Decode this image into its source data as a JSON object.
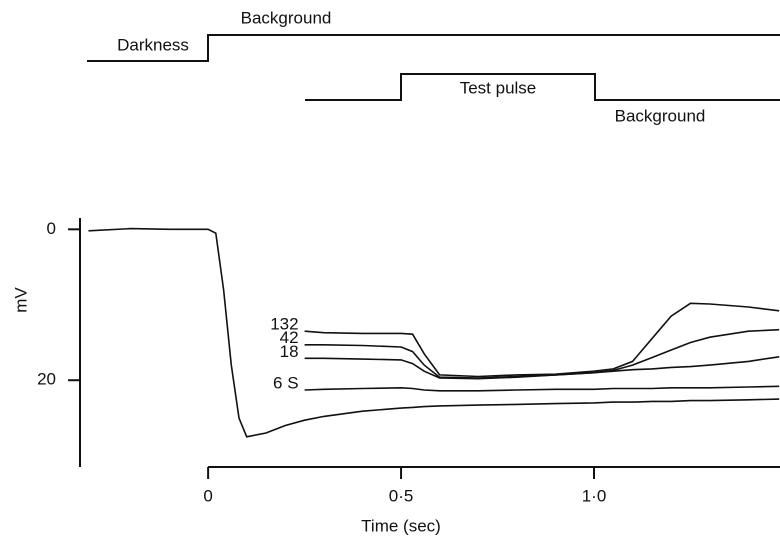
{
  "chart_data": {
    "type": "line",
    "annotations": [
      "Darkness",
      "Background",
      "Test pulse",
      "Background"
    ],
    "xlabel": "Time (sec)",
    "ylabel": "mV",
    "x": [
      -0.31,
      -0.2,
      -0.1,
      0,
      0.02,
      0.04,
      0.06,
      0.08,
      0.1,
      0.15,
      0.2,
      0.25,
      0.3,
      0.4,
      0.5,
      0.53,
      0.56,
      0.6,
      0.7,
      0.8,
      0.9,
      1.0,
      1.05,
      1.1,
      1.15,
      1.2,
      1.25,
      1.3,
      1.4,
      1.48
    ],
    "series": [
      {
        "color": "#111111",
        "values": [
          0.2,
          -0.1,
          0,
          0,
          0.5,
          8,
          18,
          25,
          27.5,
          27,
          26,
          25.3,
          24.8,
          24.1,
          23.7,
          23.6,
          23.5,
          23.4,
          23.3,
          23.2,
          23.1,
          23.0,
          22.9,
          22.9,
          22.8,
          22.8,
          22.7,
          22.7,
          22.6,
          22.5
        ]
      },
      {
        "name": "132",
        "color": "#111111",
        "values": [
          null,
          null,
          null,
          null,
          null,
          null,
          null,
          null,
          null,
          null,
          null,
          13.5,
          13.7,
          13.8,
          13.8,
          13.9,
          16.5,
          19.3,
          19.5,
          19.3,
          19.2,
          18.8,
          18.5,
          17.5,
          14.5,
          11.5,
          9.8,
          9.9,
          10.3,
          10.8
        ]
      },
      {
        "name": "42",
        "color": "#111111",
        "values": [
          null,
          null,
          null,
          null,
          null,
          null,
          null,
          null,
          null,
          null,
          null,
          15.3,
          15.3,
          15.4,
          15.6,
          16.2,
          18.0,
          19.6,
          19.7,
          19.5,
          19.3,
          19.0,
          18.7,
          18.0,
          17.0,
          16.0,
          15.0,
          14.3,
          13.5,
          13.3
        ]
      },
      {
        "name": "18",
        "color": "#111111",
        "values": [
          null,
          null,
          null,
          null,
          null,
          null,
          null,
          null,
          null,
          null,
          null,
          17.1,
          17.1,
          17.2,
          17.3,
          17.8,
          18.8,
          19.7,
          19.8,
          19.6,
          19.3,
          19.0,
          18.8,
          18.6,
          18.5,
          18.3,
          18.2,
          18.0,
          17.5,
          16.9
        ]
      },
      {
        "name": "6 S",
        "color": "#111111",
        "values": [
          null,
          null,
          null,
          null,
          null,
          null,
          null,
          null,
          null,
          null,
          null,
          21.3,
          21.2,
          21.1,
          21.0,
          21.1,
          21.3,
          21.4,
          21.4,
          21.3,
          21.2,
          21.2,
          21.1,
          21.1,
          21.1,
          21.0,
          21.0,
          21.0,
          20.9,
          20.8
        ]
      }
    ],
    "xlim": [
      -0.332,
      1.482
    ],
    "xticks": [
      0,
      {
        "value": 0.5,
        "label": "0·5"
      },
      {
        "value": 1.0,
        "label": "1·0"
      }
    ],
    "ylim": [
      31.5,
      -1.5
    ],
    "yticks": [
      0,
      20
    ]
  }
}
